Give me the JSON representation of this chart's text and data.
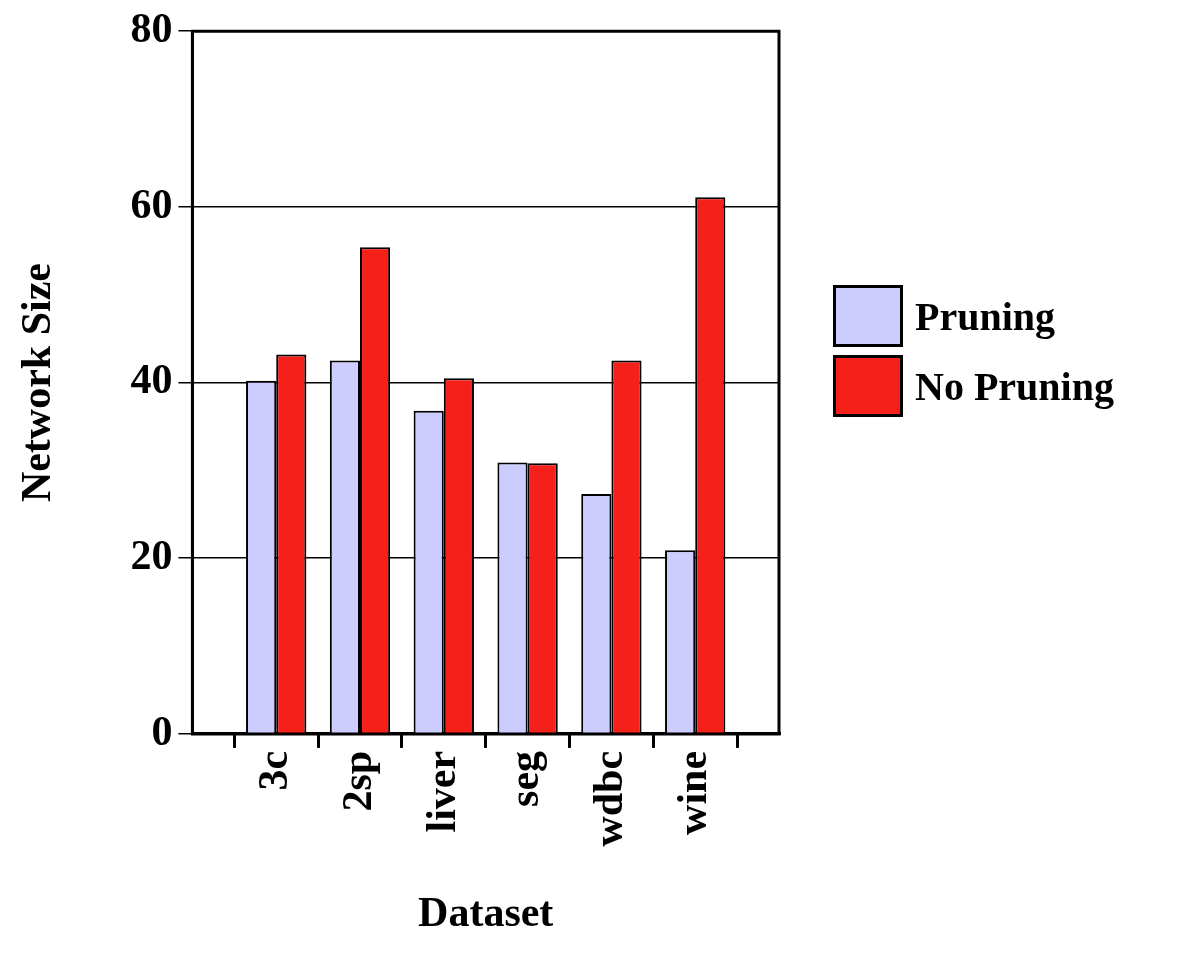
{
  "chart_data": {
    "type": "bar",
    "xlabel": "Dataset",
    "ylabel": "Network Size",
    "categories": [
      null,
      "3c",
      "2sp",
      "liver",
      "seg",
      "wdbc",
      "wine",
      null
    ],
    "series": [
      {
        "name": "Pruning",
        "color": "#ccccff",
        "values": [
          null,
          40.2,
          42.5,
          36.8,
          30.9,
          27.3,
          20.9,
          null
        ]
      },
      {
        "name": "No Pruning",
        "color": "#f5201a",
        "values": [
          null,
          43.2,
          55.4,
          40.5,
          30.8,
          42.5,
          61.1,
          null
        ]
      }
    ],
    "ylim": [
      0,
      80
    ],
    "yticks": [
      0,
      20,
      40,
      60,
      80
    ],
    "grid": "y",
    "legend": "right"
  }
}
